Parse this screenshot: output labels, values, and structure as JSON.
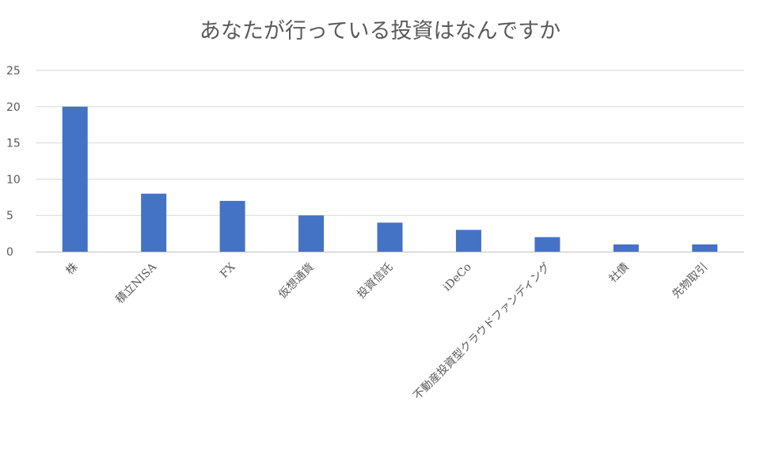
{
  "chart_data": {
    "type": "bar",
    "title": "あなたが行っている投資はなんですか",
    "xlabel": "",
    "ylabel": "",
    "categories": [
      "株",
      "積立NISA",
      "FX",
      "仮想通貨",
      "投資信託",
      "iDeCo",
      "不動産投資型クラウドファンディング",
      "社債",
      "先物取引"
    ],
    "values": [
      20,
      8,
      7,
      5,
      4,
      3,
      2,
      1,
      1
    ],
    "ylim": [
      0,
      25
    ],
    "yticks": [
      0,
      5,
      10,
      15,
      20,
      25
    ],
    "grid": true,
    "legend": "none",
    "colors": {
      "bar": "#4472c4",
      "grid": "#d9d9d9",
      "axis": "#bfbfbf",
      "text": "#595959"
    }
  }
}
